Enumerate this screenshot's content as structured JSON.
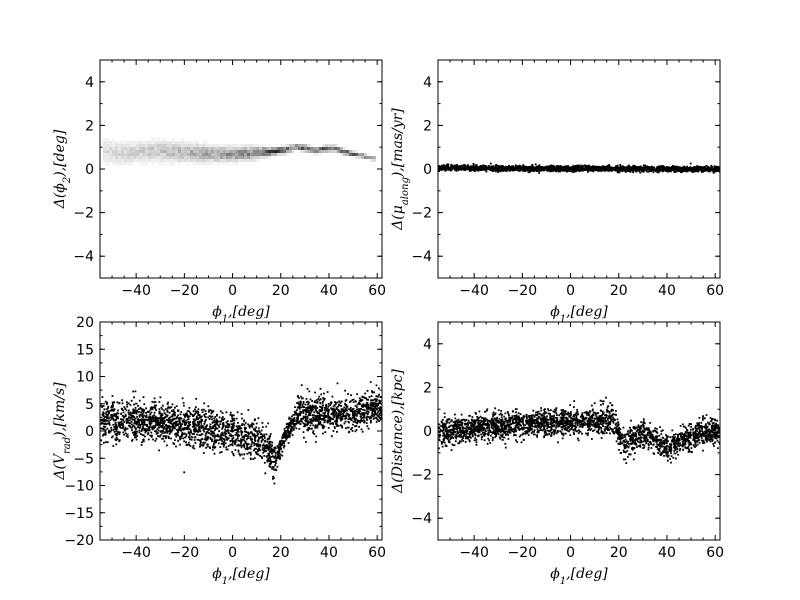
{
  "chart_data": [
    {
      "type": "heatmap",
      "xlabel": "ϕ1,[deg]",
      "ylabel": "Δ(ϕ2),[deg]",
      "xlim": [
        -55,
        62
      ],
      "ylim": [
        -5,
        5
      ],
      "xticks": [
        -40,
        -20,
        0,
        20,
        40,
        60
      ],
      "yticks": [
        -4,
        -2,
        0,
        2,
        4
      ],
      "xtick_labels": [
        "−40",
        "−20",
        "0",
        "20",
        "40",
        "60"
      ],
      "ytick_labels": [
        "−4",
        "−2",
        "0",
        "2",
        "4"
      ],
      "grid": false,
      "cmap": "gray_r",
      "track": {
        "x": [
          -52,
          -45,
          -38,
          -30,
          -22,
          -15,
          -8,
          0,
          8,
          14,
          18,
          22,
          26,
          30,
          34,
          38,
          42,
          46,
          50,
          54,
          58
        ],
        "y": [
          0.85,
          0.8,
          0.85,
          0.9,
          0.85,
          0.8,
          0.75,
          0.75,
          0.8,
          0.85,
          0.9,
          0.95,
          1.1,
          1.0,
          0.9,
          1.0,
          1.0,
          0.85,
          0.75,
          0.65,
          0.55
        ],
        "spread": [
          0.35,
          0.33,
          0.3,
          0.3,
          0.28,
          0.25,
          0.22,
          0.2,
          0.18,
          0.12,
          0.1,
          0.1,
          0.08,
          0.1,
          0.08,
          0.1,
          0.08,
          0.08,
          0.07,
          0.06,
          0.06
        ],
        "density": [
          0.15,
          0.18,
          0.22,
          0.25,
          0.3,
          0.35,
          0.4,
          0.45,
          0.55,
          0.75,
          0.85,
          0.7,
          0.6,
          0.7,
          0.65,
          0.7,
          0.75,
          0.7,
          0.65,
          0.6,
          0.55
        ]
      }
    },
    {
      "type": "scatter",
      "xlabel": "ϕ1,[deg]",
      "ylabel": "Δ(μalong),[mas/yr]",
      "xlim": [
        -55,
        62
      ],
      "ylim": [
        -5,
        5
      ],
      "xticks": [
        -40,
        -20,
        0,
        20,
        40,
        60
      ],
      "yticks": [
        -4,
        -2,
        0,
        2,
        4
      ],
      "xtick_labels": [
        "−40",
        "−20",
        "0",
        "20",
        "40",
        "60"
      ],
      "ytick_labels": [
        "−4",
        "−2",
        "0",
        "2",
        "4"
      ],
      "grid": false,
      "color": "#000000",
      "trend": {
        "x": [
          -55,
          -20,
          0,
          20,
          40,
          62
        ],
        "y": [
          0.08,
          0.07,
          0.05,
          0.06,
          0.04,
          0.03
        ],
        "spread": [
          0.06,
          0.06,
          0.06,
          0.06,
          0.06,
          0.06
        ]
      }
    },
    {
      "type": "scatter",
      "xlabel": "ϕ1,[deg]",
      "ylabel": "Δ(Vrad),[km/s]",
      "xlim": [
        -55,
        62
      ],
      "ylim": [
        -20,
        20
      ],
      "xticks": [
        -40,
        -20,
        0,
        20,
        40,
        60
      ],
      "yticks": [
        -20,
        -15,
        -10,
        -5,
        0,
        5,
        10,
        15,
        20
      ],
      "xtick_labels": [
        "−40",
        "−20",
        "0",
        "20",
        "40",
        "60"
      ],
      "ytick_labels": [
        "−20",
        "−15",
        "−10",
        "−5",
        "0",
        "5",
        "10",
        "15",
        "20"
      ],
      "grid": false,
      "color": "#000000",
      "trend": {
        "x": [
          -55,
          -40,
          -20,
          0,
          10,
          15,
          17,
          20,
          25,
          28,
          30,
          40,
          50,
          60
        ],
        "y": [
          2,
          2.2,
          1.2,
          0,
          -1.5,
          -3.5,
          -5.5,
          -2,
          2,
          4,
          3.5,
          3,
          3.5,
          4.5
        ],
        "spread": [
          1.8,
          1.8,
          1.8,
          1.8,
          1.8,
          1.8,
          1.5,
          1.0,
          0.8,
          1.8,
          1.8,
          1.5,
          1.5,
          1.5
        ]
      }
    },
    {
      "type": "scatter",
      "xlabel": "ϕ1,[deg]",
      "ylabel": "Δ(Distance),[kpc]",
      "xlim": [
        -55,
        62
      ],
      "ylim": [
        -5,
        5
      ],
      "xticks": [
        -40,
        -20,
        0,
        20,
        40,
        60
      ],
      "yticks": [
        -4,
        -2,
        0,
        2,
        4
      ],
      "xtick_labels": [
        "−40",
        "−20",
        "0",
        "20",
        "40",
        "60"
      ],
      "ytick_labels": [
        "−4",
        "−2",
        "0",
        "2",
        "4"
      ],
      "grid": false,
      "color": "#000000",
      "trend": {
        "x": [
          -55,
          -40,
          -20,
          0,
          15,
          18,
          20,
          22,
          25,
          30,
          35,
          40,
          45,
          50,
          55,
          60
        ],
        "y": [
          0,
          0.2,
          0.35,
          0.45,
          0.5,
          0.45,
          -0.2,
          -0.6,
          -0.3,
          -0.1,
          -0.4,
          -0.75,
          -0.5,
          -0.2,
          -0.05,
          0
        ],
        "spread": [
          0.3,
          0.3,
          0.3,
          0.3,
          0.3,
          0.3,
          0.3,
          0.3,
          0.3,
          0.3,
          0.3,
          0.3,
          0.3,
          0.3,
          0.3,
          0.3
        ]
      }
    }
  ]
}
